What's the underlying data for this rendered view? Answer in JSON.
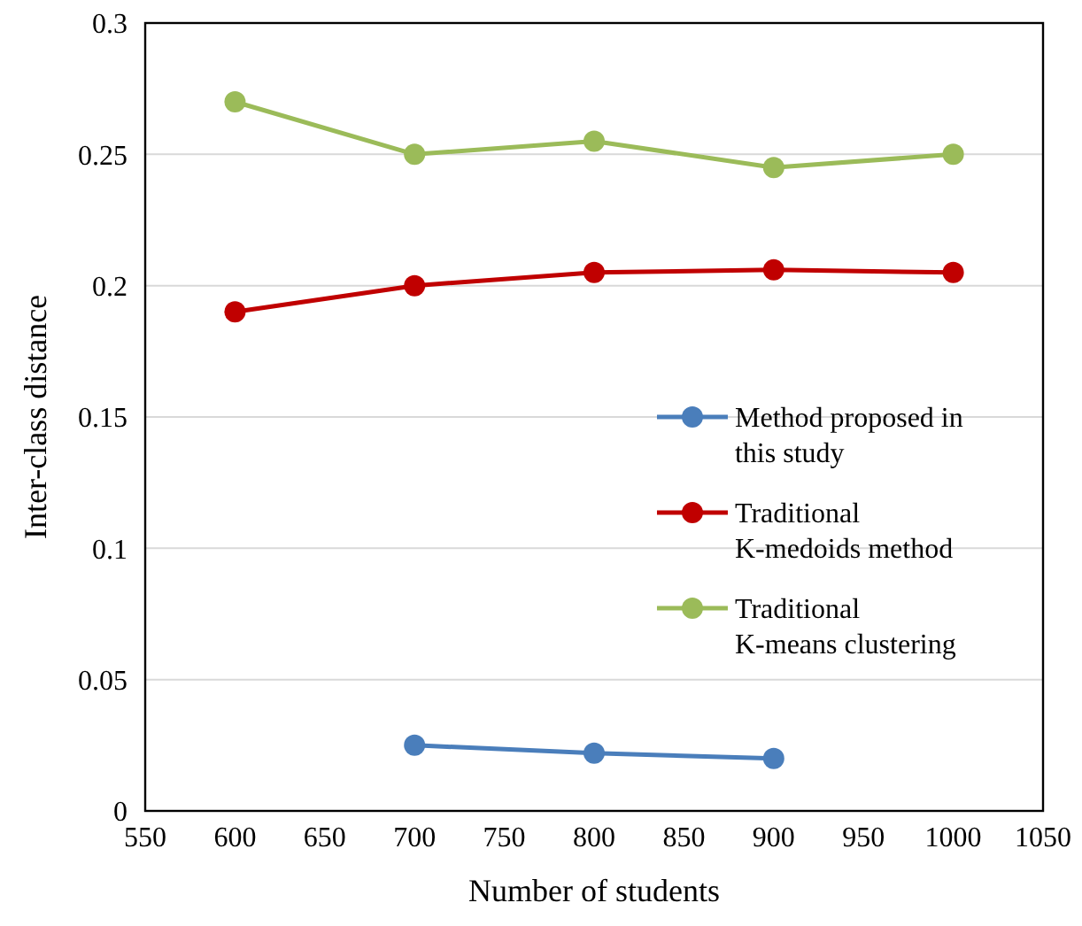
{
  "chart_data": {
    "type": "line",
    "xlabel": "Number of students",
    "ylabel": "Inter-class distance",
    "x": [
      600,
      700,
      800,
      900,
      1000
    ],
    "series": [
      {
        "name": "Method proposed in this study",
        "color": "#4a7ebb",
        "values": [
          null,
          0.025,
          0.022,
          0.02,
          null
        ]
      },
      {
        "name": "Traditional K-medoids method",
        "color": "#c00000",
        "values": [
          0.19,
          0.2,
          0.205,
          0.206,
          0.205
        ]
      },
      {
        "name": "Traditional K-means clustering",
        "color": "#9bbb59",
        "values": [
          0.27,
          0.25,
          0.255,
          0.245,
          0.25
        ]
      }
    ],
    "xlim": [
      550,
      1050
    ],
    "xticks": [
      550,
      600,
      650,
      700,
      750,
      800,
      850,
      900,
      950,
      1000,
      1050
    ],
    "ylim": [
      0,
      0.3
    ],
    "yticks": [
      0,
      0.05,
      0.1,
      0.15,
      0.2,
      0.25,
      0.3
    ],
    "grid": "y",
    "legend": "right",
    "marker": "circle",
    "line_style": "solid"
  }
}
